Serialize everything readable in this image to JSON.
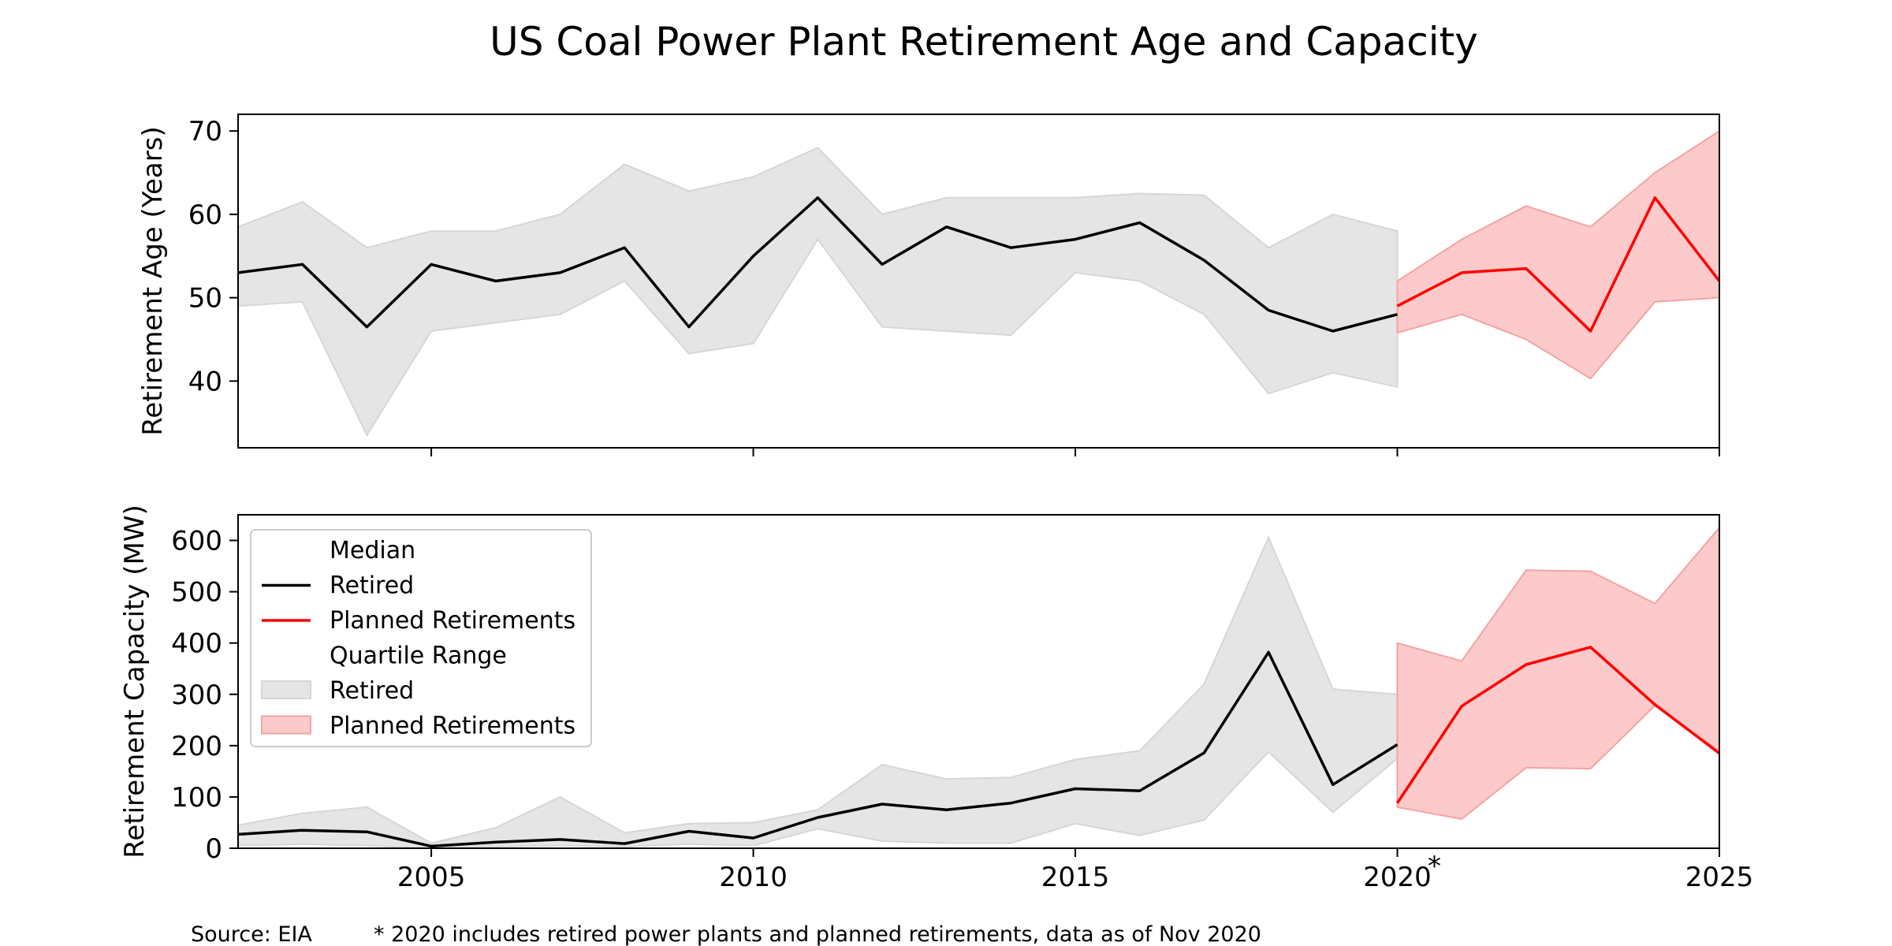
{
  "chart_data": {
    "title": "US Coal Power Plant Retirement Age and Capacity",
    "xlim": [
      2002,
      2025
    ],
    "x_ticks": [
      2005,
      2010,
      2015,
      2020,
      2025
    ],
    "x_tick_labels": [
      "2005",
      "2010",
      "2015",
      "2020",
      "2025"
    ],
    "x_annotation": "*",
    "source_note": "Source: EIA",
    "footnote": "* 2020 includes retired power plants and planned retirements, data as of Nov 2020",
    "colors": {
      "retired_line": "#000000",
      "planned_line": "#ff0000",
      "retired_fill": "#e5e5e5",
      "planned_fill": "#fccaca",
      "planned_fill_edge": "#f5a3a3"
    },
    "legend": {
      "placement": "upper-left",
      "items": [
        {
          "label": "Median",
          "kind": "header"
        },
        {
          "label": "Retired",
          "kind": "line",
          "series": "retired"
        },
        {
          "label": "Planned Retirements",
          "kind": "line",
          "series": "planned"
        },
        {
          "label": "Quartile Range",
          "kind": "header"
        },
        {
          "label": "Retired",
          "kind": "patch",
          "series": "retired"
        },
        {
          "label": "Planned Retirements",
          "kind": "patch",
          "series": "planned"
        }
      ]
    },
    "panels": [
      {
        "type": "line",
        "ylabel": "Retirement Age (Years)",
        "ylim": [
          32,
          72
        ],
        "y_ticks": [
          40,
          50,
          60,
          70
        ],
        "y_tick_labels": [
          "40",
          "50",
          "60",
          "70"
        ],
        "retired": {
          "x": [
            2002,
            2003,
            2004,
            2005,
            2006,
            2007,
            2008,
            2009,
            2010,
            2011,
            2012,
            2013,
            2014,
            2015,
            2016,
            2017,
            2018,
            2019,
            2020
          ],
          "median": [
            53,
            54,
            46.5,
            54,
            52,
            53,
            56,
            46.5,
            55,
            62,
            54,
            58.5,
            56,
            57,
            59,
            54.5,
            48.5,
            46,
            48
          ],
          "q1": [
            49,
            49.5,
            33.5,
            46,
            47,
            48,
            52,
            43.3,
            44.5,
            57,
            46.5,
            46,
            45.5,
            53,
            52,
            48,
            38.5,
            41,
            39.3
          ],
          "q3": [
            58.5,
            61.5,
            56,
            58,
            58,
            60,
            66,
            62.8,
            64.5,
            68,
            60,
            62,
            62,
            62,
            62.5,
            62.3,
            56,
            60,
            58
          ]
        },
        "planned": {
          "x": [
            2020,
            2021,
            2022,
            2023,
            2024,
            2025
          ],
          "median": [
            49,
            53,
            53.5,
            46,
            62,
            52
          ],
          "q1": [
            45.8,
            48,
            45,
            40.3,
            49.5,
            50
          ],
          "q3": [
            52,
            57,
            61,
            58.5,
            65,
            70
          ]
        }
      },
      {
        "type": "line",
        "ylabel": "Retirement Capacity (MW)",
        "ylim": [
          0,
          650
        ],
        "y_ticks": [
          0,
          100,
          200,
          300,
          400,
          500,
          600
        ],
        "y_tick_labels": [
          "0",
          "100",
          "200",
          "300",
          "400",
          "500",
          "600"
        ],
        "retired": {
          "x": [
            2002,
            2003,
            2004,
            2005,
            2006,
            2007,
            2008,
            2009,
            2010,
            2011,
            2012,
            2013,
            2014,
            2015,
            2016,
            2017,
            2018,
            2019,
            2020
          ],
          "median": [
            27,
            35,
            32,
            4,
            12,
            17,
            9,
            33,
            20,
            60,
            86,
            75,
            88,
            116,
            112,
            186,
            382,
            124,
            202
          ],
          "q1": [
            5,
            8,
            5,
            0,
            3,
            5,
            3,
            8,
            5,
            38,
            14,
            10,
            10,
            48,
            25,
            55,
            188,
            70,
            175
          ],
          "q3": [
            45,
            68,
            80,
            10,
            40,
            100,
            30,
            48,
            50,
            75,
            163,
            135,
            138,
            173,
            190,
            320,
            606,
            310,
            300
          ]
        },
        "planned": {
          "x": [
            2020,
            2021,
            2022,
            2023,
            2024,
            2025
          ],
          "median": [
            88,
            277,
            358,
            392,
            280,
            185
          ],
          "q1": [
            80,
            57,
            157,
            155,
            278,
            190
          ],
          "q3": [
            400,
            365,
            542,
            540,
            477,
            625
          ]
        }
      }
    ]
  }
}
